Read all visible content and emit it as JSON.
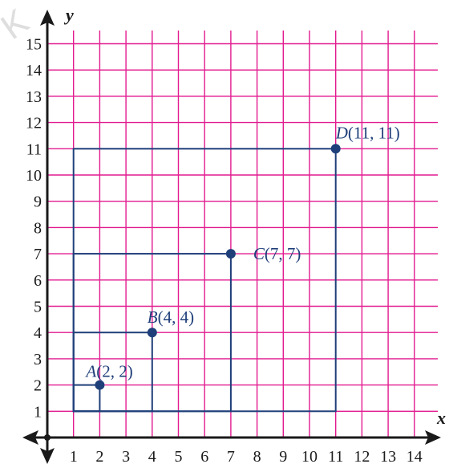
{
  "watermark": "K",
  "colors": {
    "grid": "#e21a8f",
    "axis": "#1a1a1a",
    "shape": "#1f3f7a",
    "point": "#1f3f7a"
  },
  "chart_data": {
    "type": "scatter",
    "title": "",
    "xlabel": "x",
    "ylabel": "y",
    "xlim": [
      0,
      14
    ],
    "ylim": [
      0,
      15
    ],
    "grid": true,
    "x_ticks": [
      "1",
      "2",
      "3",
      "4",
      "5",
      "6",
      "7",
      "8",
      "9",
      "10",
      "11",
      "12",
      "13",
      "14"
    ],
    "y_ticks": [
      "1",
      "2",
      "3",
      "4",
      "5",
      "6",
      "7",
      "8",
      "9",
      "10",
      "11",
      "12",
      "13",
      "14",
      "15"
    ],
    "points": [
      {
        "letter": "A",
        "coords": "(2, 2)",
        "x": 2,
        "y": 2
      },
      {
        "letter": "B",
        "coords": "(4, 4)",
        "x": 4,
        "y": 4
      },
      {
        "letter": "C",
        "coords": "(7, 7)",
        "x": 7,
        "y": 7
      },
      {
        "letter": "D",
        "coords": "(11, 11)",
        "x": 11,
        "y": 11
      }
    ],
    "squares": [
      {
        "from": [
          1,
          1
        ],
        "to": [
          2,
          2
        ]
      },
      {
        "from": [
          1,
          1
        ],
        "to": [
          4,
          4
        ]
      },
      {
        "from": [
          1,
          1
        ],
        "to": [
          7,
          7
        ]
      },
      {
        "from": [
          1,
          1
        ],
        "to": [
          11,
          11
        ]
      }
    ]
  }
}
